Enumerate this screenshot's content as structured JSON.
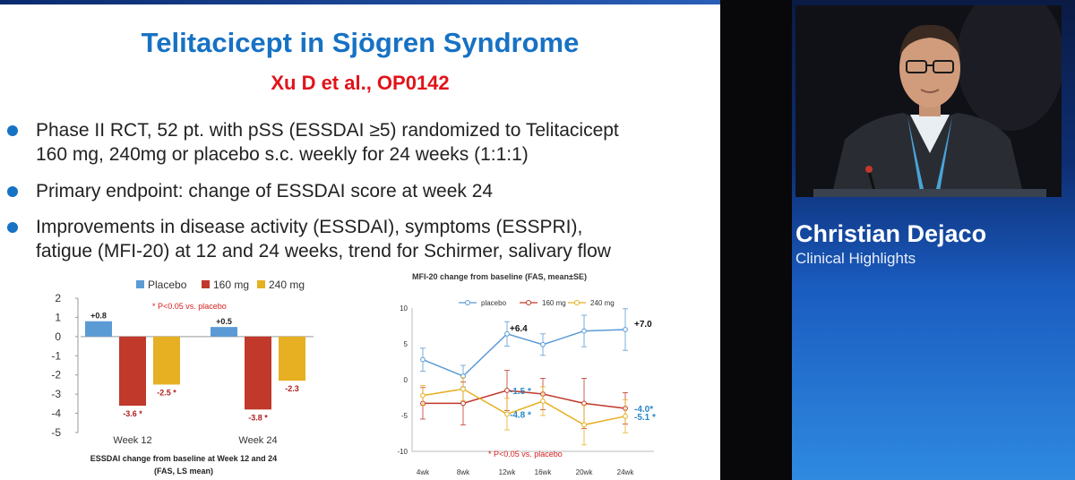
{
  "slide": {
    "title": "Telitacicept in Sjögren Syndrome",
    "subtitle": "Xu D et al., OP0142",
    "bullets": [
      "Phase II RCT, 52 pt. with pSS (ESSDAI ≥5) randomized to Telitacicept\n160 mg, 240mg or placebo s.c. weekly for 24 weeks (1:1:1)",
      "Primary endpoint: change of ESSDAI score at week 24",
      "Improvements in disease activity (ESSDAI), symptoms (ESSPRI),\nfatigue (MFI-20) at 12 and 24 weeks, trend for Schirmer, salivary flow"
    ]
  },
  "presenter": {
    "name": "Christian Dejaco",
    "role": "Clinical Highlights"
  },
  "colors": {
    "title_blue": "#1772c4",
    "subtitle_red": "#e0141a",
    "placebo": "#5b9bd5",
    "dose160": "#c0392b",
    "dose240": "#e6b022"
  },
  "chart_data": [
    {
      "type": "bar",
      "title": "ESSDAI change from baseline at Week 12 and 24\n(FAS, LS mean)",
      "annotation": "* P<0.05 vs. placebo",
      "categories": [
        "Week 12",
        "Week 24"
      ],
      "series": [
        {
          "name": "Placebo",
          "values": [
            0.8,
            0.5
          ],
          "labels": [
            "+0.8",
            "+0.5"
          ]
        },
        {
          "name": "160 mg",
          "values": [
            -3.6,
            -3.8
          ],
          "labels": [
            "-3.6 *",
            "-3.8 *"
          ]
        },
        {
          "name": "240 mg",
          "values": [
            -2.5,
            -2.3
          ],
          "labels": [
            "-2.5 *",
            "-2.3"
          ]
        }
      ],
      "ylim": [
        -5,
        2
      ],
      "yticks": [
        "2",
        "1",
        "0",
        "-1",
        "-2",
        "-3",
        "-4",
        "-5"
      ],
      "legend": "top"
    },
    {
      "type": "line",
      "title": "MFI-20 change from baseline (FAS, mean±SE)",
      "annotation": "* P<0.05 vs. placebo",
      "x": [
        "4wk",
        "8wk",
        "12wk",
        "16wk",
        "20wk",
        "24wk"
      ],
      "series": [
        {
          "name": "placebo",
          "values": [
            2.8,
            0.5,
            6.4,
            4.9,
            6.8,
            7.0
          ],
          "errors": [
            1.6,
            1.5,
            1.7,
            1.5,
            2.2,
            2.9
          ],
          "labels": [
            "",
            "",
            "+6.4",
            "",
            "",
            "+7.0"
          ]
        },
        {
          "name": "160 mg",
          "values": [
            -3.3,
            -3.3,
            -1.5,
            -2.0,
            -3.3,
            -4.0
          ],
          "errors": [
            2.2,
            3.0,
            2.8,
            2.2,
            3.5,
            2.2
          ],
          "labels": [
            "",
            "",
            "-1.5 *",
            "",
            "",
            "-4.0*"
          ]
        },
        {
          "name": "240 mg",
          "values": [
            -2.2,
            -1.3,
            -4.8,
            -3.0,
            -6.3,
            -5.1
          ],
          "errors": [
            1.4,
            1.6,
            2.2,
            2.0,
            2.8,
            2.3
          ],
          "labels": [
            "",
            "",
            "-4.8 *",
            "",
            "",
            "-5.1 *"
          ]
        }
      ],
      "ylim": [
        -10,
        10
      ],
      "yticks": [
        "10",
        "5",
        "0",
        "-5",
        "-10"
      ],
      "legend": "top"
    }
  ]
}
